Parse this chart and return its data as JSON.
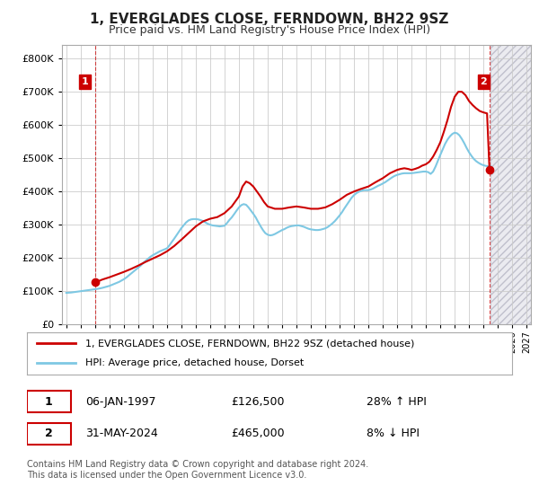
{
  "title": "1, EVERGLADES CLOSE, FERNDOWN, BH22 9SZ",
  "subtitle": "Price paid vs. HM Land Registry's House Price Index (HPI)",
  "legend_line1": "1, EVERGLADES CLOSE, FERNDOWN, BH22 9SZ (detached house)",
  "legend_line2": "HPI: Average price, detached house, Dorset",
  "point1_date": "06-JAN-1997",
  "point1_price": "£126,500",
  "point1_hpi": "28% ↑ HPI",
  "point2_date": "31-MAY-2024",
  "point2_price": "£465,000",
  "point2_hpi": "8% ↓ HPI",
  "footer": "Contains HM Land Registry data © Crown copyright and database right 2024.\nThis data is licensed under the Open Government Licence v3.0.",
  "hpi_color": "#7ec8e3",
  "price_color": "#cc0000",
  "annotation_box_color": "#cc0000",
  "bg_color": "#ffffff",
  "grid_color": "#cccccc",
  "ylim": [
    0,
    840000
  ],
  "yticks": [
    0,
    100000,
    200000,
    300000,
    400000,
    500000,
    600000,
    700000,
    800000
  ],
  "xlim_start": 1994.7,
  "xlim_end": 2027.3,
  "xticks": [
    1995,
    1996,
    1997,
    1998,
    1999,
    2000,
    2001,
    2002,
    2003,
    2004,
    2005,
    2006,
    2007,
    2008,
    2009,
    2010,
    2011,
    2012,
    2013,
    2014,
    2015,
    2016,
    2017,
    2018,
    2019,
    2020,
    2021,
    2022,
    2023,
    2024,
    2025,
    2026,
    2027
  ],
  "point1_x": 1997.03,
  "point1_y": 126500,
  "point2_x": 2024.42,
  "point2_y": 465000,
  "hpi_x": [
    1995.0,
    1995.17,
    1995.33,
    1995.5,
    1995.67,
    1995.83,
    1996.0,
    1996.17,
    1996.33,
    1996.5,
    1996.67,
    1996.83,
    1997.0,
    1997.17,
    1997.33,
    1997.5,
    1997.67,
    1997.83,
    1998.0,
    1998.17,
    1998.33,
    1998.5,
    1998.67,
    1998.83,
    1999.0,
    1999.17,
    1999.33,
    1999.5,
    1999.67,
    1999.83,
    2000.0,
    2000.17,
    2000.33,
    2000.5,
    2000.67,
    2000.83,
    2001.0,
    2001.17,
    2001.33,
    2001.5,
    2001.67,
    2001.83,
    2002.0,
    2002.17,
    2002.33,
    2002.5,
    2002.67,
    2002.83,
    2003.0,
    2003.17,
    2003.33,
    2003.5,
    2003.67,
    2003.83,
    2004.0,
    2004.17,
    2004.33,
    2004.5,
    2004.67,
    2004.83,
    2005.0,
    2005.17,
    2005.33,
    2005.5,
    2005.67,
    2005.83,
    2006.0,
    2006.17,
    2006.33,
    2006.5,
    2006.67,
    2006.83,
    2007.0,
    2007.17,
    2007.33,
    2007.5,
    2007.67,
    2007.83,
    2008.0,
    2008.17,
    2008.33,
    2008.5,
    2008.67,
    2008.83,
    2009.0,
    2009.17,
    2009.33,
    2009.5,
    2009.67,
    2009.83,
    2010.0,
    2010.17,
    2010.33,
    2010.5,
    2010.67,
    2010.83,
    2011.0,
    2011.17,
    2011.33,
    2011.5,
    2011.67,
    2011.83,
    2012.0,
    2012.17,
    2012.33,
    2012.5,
    2012.67,
    2012.83,
    2013.0,
    2013.17,
    2013.33,
    2013.5,
    2013.67,
    2013.83,
    2014.0,
    2014.17,
    2014.33,
    2014.5,
    2014.67,
    2014.83,
    2015.0,
    2015.17,
    2015.33,
    2015.5,
    2015.67,
    2015.83,
    2016.0,
    2016.17,
    2016.33,
    2016.5,
    2016.67,
    2016.83,
    2017.0,
    2017.17,
    2017.33,
    2017.5,
    2017.67,
    2017.83,
    2018.0,
    2018.17,
    2018.33,
    2018.5,
    2018.67,
    2018.83,
    2019.0,
    2019.17,
    2019.33,
    2019.5,
    2019.67,
    2019.83,
    2020.0,
    2020.17,
    2020.33,
    2020.5,
    2020.67,
    2020.83,
    2021.0,
    2021.17,
    2021.33,
    2021.5,
    2021.67,
    2021.83,
    2022.0,
    2022.17,
    2022.33,
    2022.5,
    2022.67,
    2022.83,
    2023.0,
    2023.17,
    2023.33,
    2023.5,
    2023.67,
    2023.83,
    2024.0,
    2024.17,
    2024.33,
    2024.5
  ],
  "hpi_y": [
    95000,
    95500,
    96000,
    97000,
    98000,
    99000,
    100000,
    101000,
    102000,
    103000,
    104000,
    105000,
    106000,
    107000,
    108500,
    110000,
    112000,
    114000,
    116000,
    119000,
    122000,
    125000,
    128000,
    132000,
    136000,
    141000,
    147000,
    153000,
    159000,
    165000,
    171000,
    177000,
    184000,
    191000,
    197000,
    203000,
    208000,
    212000,
    216000,
    220000,
    223000,
    226000,
    229000,
    238000,
    248000,
    258000,
    269000,
    279000,
    290000,
    299000,
    307000,
    313000,
    316000,
    317000,
    317000,
    316000,
    314000,
    311000,
    307000,
    303000,
    300000,
    298000,
    297000,
    296000,
    295000,
    296000,
    297000,
    305000,
    314000,
    322000,
    332000,
    342000,
    352000,
    359000,
    362000,
    360000,
    352000,
    343000,
    333000,
    322000,
    309000,
    296000,
    284000,
    275000,
    270000,
    268000,
    269000,
    272000,
    276000,
    280000,
    284000,
    287000,
    291000,
    294000,
    296000,
    297000,
    298000,
    298000,
    296000,
    294000,
    291000,
    288000,
    286000,
    285000,
    284000,
    284000,
    285000,
    287000,
    289000,
    293000,
    298000,
    304000,
    311000,
    319000,
    328000,
    338000,
    349000,
    360000,
    371000,
    381000,
    389000,
    395000,
    399000,
    402000,
    404000,
    404000,
    404000,
    406000,
    409000,
    413000,
    417000,
    420000,
    424000,
    428000,
    433000,
    438000,
    443000,
    447000,
    450000,
    452000,
    454000,
    455000,
    455000,
    455000,
    455000,
    456000,
    457000,
    458000,
    459000,
    460000,
    460000,
    458000,
    453000,
    460000,
    475000,
    492000,
    510000,
    527000,
    543000,
    556000,
    566000,
    573000,
    577000,
    575000,
    569000,
    558000,
    545000,
    531000,
    518000,
    507000,
    498000,
    491000,
    486000,
    482000,
    479000,
    477000,
    476000,
    476000
  ],
  "price_x": [
    1997.03,
    1997.5,
    1998.0,
    1998.5,
    1999.0,
    1999.5,
    2000.0,
    2000.5,
    2001.0,
    2001.5,
    2002.0,
    2002.5,
    2003.0,
    2003.5,
    2004.0,
    2004.5,
    2005.0,
    2005.5,
    2006.0,
    2006.5,
    2007.0,
    2007.25,
    2007.5,
    2007.75,
    2008.0,
    2008.25,
    2008.5,
    2008.75,
    2009.0,
    2009.5,
    2010.0,
    2010.5,
    2011.0,
    2011.5,
    2012.0,
    2012.5,
    2013.0,
    2013.5,
    2014.0,
    2014.5,
    2015.0,
    2015.5,
    2016.0,
    2016.5,
    2017.0,
    2017.5,
    2018.0,
    2018.25,
    2018.5,
    2018.75,
    2019.0,
    2019.25,
    2019.5,
    2019.75,
    2020.0,
    2020.25,
    2020.5,
    2020.75,
    2021.0,
    2021.25,
    2021.5,
    2021.75,
    2022.0,
    2022.25,
    2022.5,
    2022.75,
    2023.0,
    2023.25,
    2023.5,
    2023.75,
    2024.0,
    2024.25,
    2024.42
  ],
  "price_y": [
    126500,
    135000,
    142000,
    150000,
    158000,
    167000,
    177000,
    188000,
    198000,
    208000,
    220000,
    236000,
    255000,
    275000,
    295000,
    310000,
    318000,
    323000,
    335000,
    355000,
    385000,
    415000,
    430000,
    425000,
    415000,
    400000,
    385000,
    368000,
    355000,
    348000,
    348000,
    352000,
    355000,
    352000,
    348000,
    348000,
    352000,
    362000,
    375000,
    390000,
    400000,
    408000,
    415000,
    428000,
    440000,
    455000,
    465000,
    468000,
    470000,
    468000,
    465000,
    468000,
    472000,
    478000,
    482000,
    490000,
    505000,
    525000,
    548000,
    580000,
    615000,
    655000,
    685000,
    700000,
    700000,
    690000,
    672000,
    660000,
    650000,
    642000,
    638000,
    635000,
    465000
  ]
}
